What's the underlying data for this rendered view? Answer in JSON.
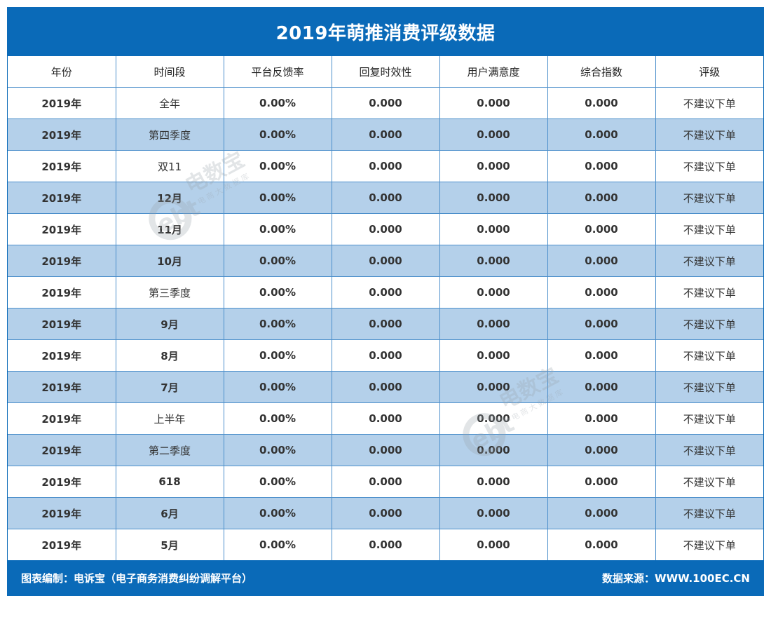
{
  "title": "2019年萌推消费评级数据",
  "table": {
    "headers": [
      "年份",
      "时间段",
      "平台反馈率",
      "回复时效性",
      "用户满意度",
      "综合指数",
      "评级"
    ],
    "rows": [
      [
        "2019年",
        "全年",
        "0.00%",
        "0.000",
        "0.000",
        "0.000",
        "不建议下单"
      ],
      [
        "2019年",
        "第四季度",
        "0.00%",
        "0.000",
        "0.000",
        "0.000",
        "不建议下单"
      ],
      [
        "2019年",
        "双11",
        "0.00%",
        "0.000",
        "0.000",
        "0.000",
        "不建议下单"
      ],
      [
        "2019年",
        "12月",
        "0.00%",
        "0.000",
        "0.000",
        "0.000",
        "不建议下单"
      ],
      [
        "2019年",
        "11月",
        "0.00%",
        "0.000",
        "0.000",
        "0.000",
        "不建议下单"
      ],
      [
        "2019年",
        "10月",
        "0.00%",
        "0.000",
        "0.000",
        "0.000",
        "不建议下单"
      ],
      [
        "2019年",
        "第三季度",
        "0.00%",
        "0.000",
        "0.000",
        "0.000",
        "不建议下单"
      ],
      [
        "2019年",
        "9月",
        "0.00%",
        "0.000",
        "0.000",
        "0.000",
        "不建议下单"
      ],
      [
        "2019年",
        "8月",
        "0.00%",
        "0.000",
        "0.000",
        "0.000",
        "不建议下单"
      ],
      [
        "2019年",
        "7月",
        "0.00%",
        "0.000",
        "0.000",
        "0.000",
        "不建议下单"
      ],
      [
        "2019年",
        "上半年",
        "0.00%",
        "0.000",
        "0.000",
        "0.000",
        "不建议下单"
      ],
      [
        "2019年",
        "第二季度",
        "0.00%",
        "0.000",
        "0.000",
        "0.000",
        "不建议下单"
      ],
      [
        "2019年",
        "618",
        "0.00%",
        "0.000",
        "0.000",
        "0.000",
        "不建议下单"
      ],
      [
        "2019年",
        "6月",
        "0.00%",
        "0.000",
        "0.000",
        "0.000",
        "不建议下单"
      ],
      [
        "2019年",
        "5月",
        "0.00%",
        "0.000",
        "0.000",
        "0.000",
        "不建议下单"
      ]
    ]
  },
  "footer": {
    "left": "图表编制：电诉宝（电子商务消费纠纷调解平台）",
    "right": "数据来源：WWW.100EC.CN"
  },
  "watermark": {
    "logo": "ebt",
    "brand": "电数宝",
    "tagline": "电商大数据库"
  },
  "colors": {
    "frame": "#0a6ab8",
    "row_alt": "#b4d0ea",
    "grid": "#4c8fcb"
  }
}
